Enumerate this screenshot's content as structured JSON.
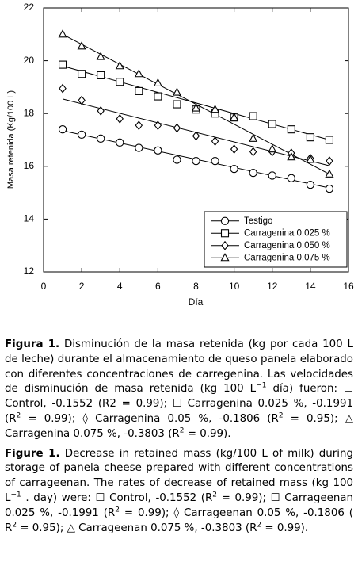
{
  "chart_data": {
    "type": "scatter",
    "x_label": "Día",
    "y_label": "Masa retenida (Kg/100 L)",
    "x": [
      1,
      2,
      3,
      4,
      5,
      6,
      7,
      8,
      9,
      10,
      11,
      12,
      13,
      14,
      15
    ],
    "xlim": [
      0,
      16
    ],
    "xticks": [
      0,
      2,
      4,
      6,
      8,
      10,
      12,
      14,
      16
    ],
    "ylim": [
      12,
      22
    ],
    "yticks": [
      12,
      14,
      16,
      18,
      20,
      22
    ],
    "legend": "lower right",
    "series": [
      {
        "name": "Testigo",
        "color": "#000000",
        "marker": "circle",
        "values": [
          17.4,
          17.2,
          17.05,
          16.9,
          16.7,
          16.6,
          16.25,
          16.2,
          16.2,
          15.9,
          15.75,
          15.65,
          15.55,
          15.3,
          15.15
        ],
        "trend": [
          17.35,
          15.18
        ]
      },
      {
        "name": "Carragenina 0,025 %",
        "color": "#000000",
        "marker": "square",
        "values": [
          19.85,
          19.5,
          19.45,
          19.2,
          18.85,
          18.65,
          18.35,
          18.15,
          18.0,
          17.85,
          17.9,
          17.6,
          17.4,
          17.1,
          17.0
        ],
        "trend": [
          19.8,
          17.0
        ]
      },
      {
        "name": "Carragenina 0,050 %",
        "color": "#000000",
        "marker": "diamond",
        "values": [
          18.95,
          18.5,
          18.1,
          17.8,
          17.55,
          17.55,
          17.45,
          17.15,
          16.95,
          16.65,
          16.55,
          16.55,
          16.5,
          16.3,
          16.2
        ],
        "trend": [
          18.55,
          16.02
        ]
      },
      {
        "name": "Carragenina 0,075 %",
        "color": "#000000",
        "marker": "triangle",
        "values": [
          21.0,
          20.55,
          20.15,
          19.8,
          19.5,
          19.15,
          18.8,
          18.2,
          18.15,
          17.85,
          17.05,
          16.65,
          16.35,
          16.25,
          15.7
        ],
        "trend": [
          21.0,
          15.7
        ]
      }
    ]
  },
  "caption": {
    "es": {
      "label": "Figura 1.",
      "parts": [
        " Disminución de la masa retenida (kg por cada 100 L de leche) durante el almacenamiento de queso panela elaborado con diferentes concentraciones de carregenina. Las velocidades de disminución de masa retenida (kg 100 L",
        {
          "sup": "−1"
        },
        " día) fueron: ☐ Control, -0.1552 (R2 = 0.99); ☐ Carragenina 0.025 %, -0.1991 (R",
        {
          "sup": "2"
        },
        " = 0.99); ◊ Carragenina 0.05 %, -0.1806 (R",
        {
          "sup": "2"
        },
        " = 0.95); △ Carragenina 0.075 %, -0.3803 (R",
        {
          "sup": "2"
        },
        " = 0.99)."
      ]
    },
    "en": {
      "label": "Figure 1.",
      "parts": [
        " Decrease in retained mass (kg/100 L of milk) during storage of panela cheese prepared with different concentrations of carrageenan. The rates of decrease of retained mass (kg 100 L",
        {
          "sup": "−1"
        },
        " . day) were: ☐ Control, -0.1552 (R",
        {
          "sup": "2"
        },
        " = 0.99); ☐ Carrageenan 0.025 %, -0.1991 (R",
        {
          "sup": "2"
        },
        " = 0.99); ◊ Carrageenan 0.05 %, -0.1806 ( R",
        {
          "sup": "2"
        },
        " = 0.95); △ Carrageenan 0.075 %, -0.3803 (R",
        {
          "sup": "2"
        },
        " = 0.99)."
      ]
    }
  }
}
